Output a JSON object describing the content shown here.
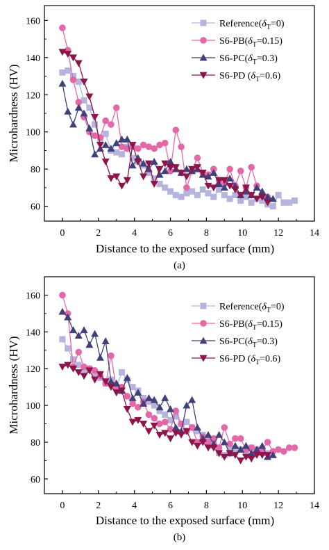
{
  "chart_data": [
    {
      "type": "line",
      "panel_label": "(a)",
      "xlabel": "Distance to the exposed surface (mm)",
      "ylabel": "Microhardness (HV)",
      "xlim": [
        -1,
        14
      ],
      "ylim": [
        52,
        168
      ],
      "xticks": [
        0,
        2,
        4,
        6,
        8,
        10,
        12,
        14
      ],
      "yticks": [
        60,
        80,
        100,
        120,
        140,
        160
      ],
      "legend_position": "top-right",
      "series": [
        {
          "name": "Reference(δT=0)",
          "name_base": "Reference(",
          "symbol": "δ",
          "sub": "T",
          "name_tail": "=0)",
          "color": "#b4b4dc",
          "marker": "square",
          "x": [
            0,
            0.3,
            0.6,
            0.9,
            1.2,
            1.5,
            1.8,
            2.1,
            2.4,
            2.7,
            3.0,
            3.3,
            3.6,
            3.9,
            4.2,
            4.5,
            4.8,
            5.1,
            5.4,
            5.7,
            6.0,
            6.3,
            6.6,
            6.9,
            7.2,
            7.5,
            7.8,
            8.1,
            8.4,
            8.7,
            9.0,
            9.3,
            9.6,
            9.9,
            10.2,
            10.5,
            10.8,
            11.1,
            11.4,
            11.7,
            12.0,
            12.3,
            12.6,
            12.9
          ],
          "y": [
            132,
            133,
            130,
            127,
            117,
            113,
            104,
            95,
            99,
            90,
            89,
            88,
            92,
            86,
            84,
            82,
            78,
            75,
            72,
            70,
            68,
            66,
            65,
            67,
            68,
            66,
            69,
            67,
            65,
            69,
            66,
            64,
            66,
            63,
            65,
            62,
            64,
            63,
            61,
            60,
            66,
            62,
            62,
            63
          ]
        },
        {
          "name": "S6-PB(δT=0.15)",
          "name_base": "S6-PB(",
          "symbol": "δ",
          "sub": "T",
          "name_tail": "=0.15)",
          "color": "#e468a8",
          "marker": "circle",
          "x": [
            0,
            0.3,
            0.6,
            0.9,
            1.2,
            1.5,
            1.8,
            2.1,
            2.4,
            2.7,
            3.0,
            3.3,
            3.6,
            3.9,
            4.2,
            4.5,
            4.8,
            5.1,
            5.4,
            5.7,
            6.0,
            6.3,
            6.6,
            6.9,
            7.2,
            7.5,
            7.8,
            8.1,
            8.4,
            8.7,
            9.0,
            9.3,
            9.6,
            9.9,
            10.2,
            10.5,
            10.8,
            11.1,
            11.4
          ],
          "y": [
            156,
            144,
            128,
            116,
            108,
            100,
            98,
            97,
            106,
            104,
            113,
            92,
            91,
            92,
            91,
            93,
            92,
            91,
            93,
            94,
            79,
            101,
            92,
            70,
            79,
            86,
            78,
            77,
            80,
            74,
            72,
            80,
            71,
            79,
            70,
            81,
            71,
            66,
            65
          ]
        },
        {
          "name": "S6-PC(δT=0.3)",
          "name_base": "S6-PC(",
          "symbol": "δ",
          "sub": "T",
          "name_tail": "=0.3)",
          "color": "#414179",
          "marker": "triangle-up",
          "x": [
            0,
            0.3,
            0.6,
            0.9,
            1.2,
            1.5,
            1.8,
            2.1,
            2.4,
            2.7,
            3.0,
            3.3,
            3.6,
            3.9,
            4.2,
            4.5,
            4.8,
            5.1,
            5.4,
            5.7,
            6.0,
            6.3,
            6.6,
            6.9,
            7.2,
            7.5,
            7.8,
            8.1,
            8.4,
            8.7,
            9.0,
            9.3,
            9.6,
            9.9,
            10.2,
            10.5,
            10.8,
            11.1,
            11.4,
            11.7
          ],
          "y": [
            126,
            111,
            104,
            113,
            110,
            102,
            88,
            91,
            93,
            91,
            94,
            96,
            96,
            82,
            86,
            83,
            80,
            84,
            77,
            79,
            84,
            80,
            78,
            80,
            79,
            80,
            77,
            76,
            78,
            72,
            70,
            75,
            71,
            66,
            68,
            66,
            70,
            68,
            65,
            64
          ]
        },
        {
          "name": "S6-PD (δT=0.6)",
          "name_base": "S6-PD (",
          "symbol": "δ",
          "sub": "T",
          "name_tail": "=0.6)",
          "color": "#8c1449",
          "marker": "triangle-down",
          "x": [
            0,
            0.3,
            0.6,
            0.9,
            1.2,
            1.5,
            1.8,
            2.1,
            2.4,
            2.7,
            3.0,
            3.3,
            3.6,
            3.9,
            4.2,
            4.5,
            4.8,
            5.1,
            5.4,
            5.7,
            6.0,
            6.3,
            6.6,
            6.9,
            7.2,
            7.5,
            7.8,
            8.1,
            8.4,
            8.7,
            9.0,
            9.3,
            9.6,
            9.9,
            10.2,
            10.5,
            10.8,
            11.1,
            11.4
          ],
          "y": [
            143,
            142,
            140,
            137,
            127,
            119,
            108,
            93,
            84,
            75,
            76,
            71,
            74,
            93,
            84,
            76,
            83,
            72,
            80,
            83,
            81,
            81,
            78,
            76,
            80,
            81,
            78,
            71,
            70,
            74,
            74,
            71,
            69,
            66,
            70,
            66,
            64,
            65,
            62
          ]
        }
      ]
    },
    {
      "type": "line",
      "panel_label": "(b)",
      "xlabel": "Distance to the exposed surface (mm)",
      "ylabel": "Microhardness (HV)",
      "xlim": [
        -1,
        14
      ],
      "ylim": [
        52,
        170
      ],
      "xticks": [
        0,
        2,
        4,
        6,
        8,
        10,
        12,
        14
      ],
      "yticks": [
        60,
        80,
        100,
        120,
        140,
        160
      ],
      "legend_position": "top-right",
      "series": [
        {
          "name": "Reference(δT=0)",
          "name_base": "Reference(",
          "symbol": "δ",
          "sub": "T",
          "name_tail": "=0)",
          "color": "#b4b4dc",
          "marker": "square",
          "x": [
            0,
            0.3,
            0.6,
            0.9,
            1.2,
            1.5,
            1.8,
            2.1,
            2.4,
            2.7,
            3.0,
            3.3,
            3.6,
            3.9,
            4.2,
            4.5,
            4.8,
            5.1,
            5.4,
            5.7,
            6.0,
            6.3,
            6.6,
            6.9,
            7.2,
            7.5,
            7.8,
            8.1,
            8.4,
            8.7,
            9.0,
            9.3,
            9.6,
            9.9,
            10.2,
            10.5,
            10.8,
            11.1,
            11.4
          ],
          "y": [
            136,
            131,
            125,
            122,
            118,
            120,
            117,
            115,
            112,
            114,
            110,
            118,
            114,
            110,
            108,
            104,
            102,
            100,
            97,
            95,
            92,
            94,
            90,
            91,
            88,
            86,
            84,
            82,
            80,
            74,
            73,
            77,
            76,
            76,
            74,
            77,
            76,
            75,
            74
          ]
        },
        {
          "name": "S6-PB(δT=0.15)",
          "name_base": "S6-PB(",
          "symbol": "δ",
          "sub": "T",
          "name_tail": "=0.15)",
          "color": "#e468a8",
          "marker": "circle",
          "x": [
            0,
            0.3,
            0.6,
            0.9,
            1.2,
            1.5,
            1.8,
            2.1,
            2.4,
            2.7,
            3.0,
            3.3,
            3.6,
            3.9,
            4.2,
            4.5,
            4.8,
            5.1,
            5.4,
            5.7,
            6.0,
            6.3,
            6.6,
            6.9,
            7.2,
            7.5,
            7.8,
            8.1,
            8.4,
            8.7,
            9.0,
            9.3,
            9.6,
            9.9,
            10.2,
            10.5,
            10.8,
            11.1,
            11.4,
            11.7,
            12.0,
            12.3,
            12.6,
            12.9
          ],
          "y": [
            160,
            150,
            121,
            129,
            121,
            120,
            119,
            116,
            112,
            127,
            109,
            110,
            105,
            101,
            99,
            102,
            95,
            93,
            90,
            91,
            87,
            97,
            90,
            86,
            88,
            80,
            83,
            80,
            82,
            77,
            88,
            79,
            82,
            82,
            76,
            77,
            76,
            76,
            80,
            75,
            76,
            75,
            77,
            77
          ]
        },
        {
          "name": "S6-PC(δT=0.3)",
          "name_base": "S6-PC(",
          "symbol": "δ",
          "sub": "T",
          "name_tail": "=0.3)",
          "color": "#414179",
          "marker": "triangle-up",
          "x": [
            0,
            0.3,
            0.6,
            0.9,
            1.2,
            1.5,
            1.8,
            2.1,
            2.4,
            2.7,
            3.0,
            3.3,
            3.6,
            3.9,
            4.2,
            4.5,
            4.8,
            5.1,
            5.4,
            5.7,
            6.0,
            6.3,
            6.6,
            6.9,
            7.2,
            7.5,
            7.8,
            8.1,
            8.4,
            8.7,
            9.0,
            9.3,
            9.6,
            9.9,
            10.2,
            10.5,
            10.8,
            11.1,
            11.4,
            11.7
          ],
          "y": [
            151,
            148,
            141,
            138,
            141,
            133,
            139,
            126,
            135,
            113,
            112,
            108,
            115,
            104,
            107,
            101,
            104,
            103,
            99,
            104,
            98,
            88,
            86,
            100,
            103,
            88,
            82,
            84,
            79,
            84,
            80,
            74,
            78,
            76,
            78,
            74,
            76,
            78,
            72,
            73
          ]
        },
        {
          "name": "S6-PD (δT=0.6)",
          "name_base": "S6-PD (",
          "symbol": "δ",
          "sub": "T",
          "name_tail": "=0.6)",
          "color": "#8c1449",
          "marker": "triangle-down",
          "x": [
            0,
            0.3,
            0.6,
            0.9,
            1.2,
            1.5,
            1.8,
            2.1,
            2.4,
            2.7,
            3.0,
            3.3,
            3.6,
            3.9,
            4.2,
            4.5,
            4.8,
            5.1,
            5.4,
            5.7,
            6.0,
            6.3,
            6.6,
            6.9,
            7.2,
            7.5,
            7.8,
            8.1,
            8.4,
            8.7,
            9.0,
            9.3,
            9.6,
            9.9,
            10.2,
            10.5,
            10.8,
            11.1,
            11.4
          ],
          "y": [
            121,
            122,
            120,
            118,
            116,
            119,
            114,
            117,
            113,
            110,
            107,
            108,
            98,
            91,
            92,
            90,
            86,
            89,
            84,
            85,
            82,
            85,
            84,
            86,
            80,
            78,
            80,
            77,
            77,
            74,
            72,
            74,
            73,
            70,
            72,
            71,
            73,
            73,
            73
          ]
        }
      ]
    }
  ]
}
